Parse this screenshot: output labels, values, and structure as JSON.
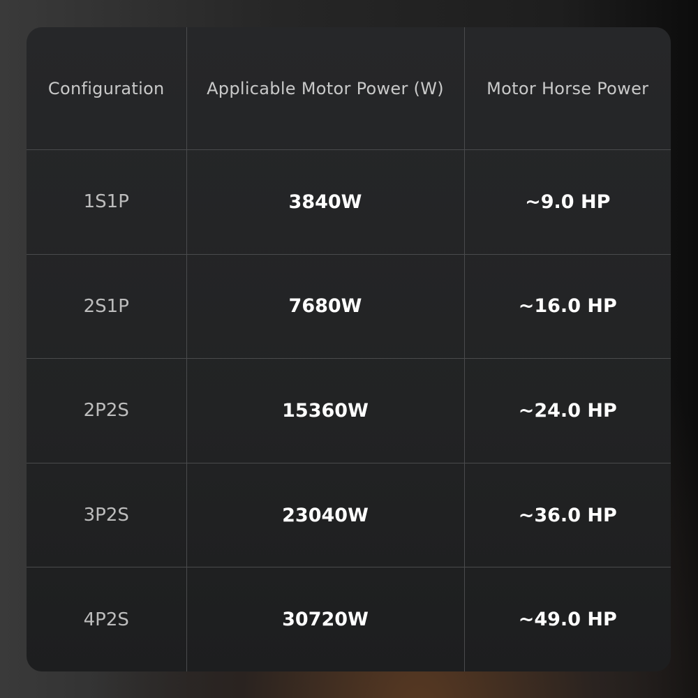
{
  "table": {
    "headers": [
      "Configuration",
      "Applicable Motor Power (W)",
      "Motor Horse Power"
    ],
    "rows": [
      {
        "configuration": "1S1P",
        "power": "3840W",
        "hp": "~9.0 HP"
      },
      {
        "configuration": "2S1P",
        "power": "7680W",
        "hp": "~16.0 HP"
      },
      {
        "configuration": "2P2S",
        "power": "15360W",
        "hp": "~24.0 HP"
      },
      {
        "configuration": "3P2S",
        "power": "23040W",
        "hp": "~36.0 HP"
      },
      {
        "configuration": "4P2S",
        "power": "30720W",
        "hp": "~49.0 HP"
      }
    ]
  }
}
